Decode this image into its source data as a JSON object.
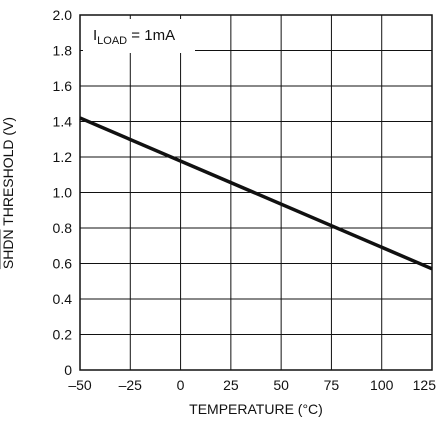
{
  "chart_data": {
    "type": "line",
    "xlabel": "TEMPERATURE (°C)",
    "ylabel_overline": "SHDN",
    "ylabel_rest": " THRESHOLD (V)",
    "xlim": [
      -50,
      125
    ],
    "ylim": [
      0,
      2.0
    ],
    "xticks": [
      -50,
      -25,
      0,
      25,
      50,
      75,
      100,
      125
    ],
    "xtick_labels": [
      "–50",
      "–25",
      "0",
      "25",
      "50",
      "75",
      "100",
      "125"
    ],
    "yticks": [
      0,
      0.2,
      0.4,
      0.6,
      0.8,
      1.0,
      1.2,
      1.4,
      1.6,
      1.8,
      2.0
    ],
    "ytick_labels": [
      "0",
      "0.2",
      "0.4",
      "0.6",
      "0.8",
      "1.0",
      "1.2",
      "1.4",
      "1.6",
      "1.8",
      "2.0"
    ],
    "grid": true,
    "annotation": {
      "main": "I",
      "sub": "LOAD",
      "rest": " = 1mA"
    },
    "series": [
      {
        "x": [
          -50,
          125
        ],
        "y": [
          1.42,
          0.57
        ]
      }
    ],
    "line_color": "#111111"
  }
}
